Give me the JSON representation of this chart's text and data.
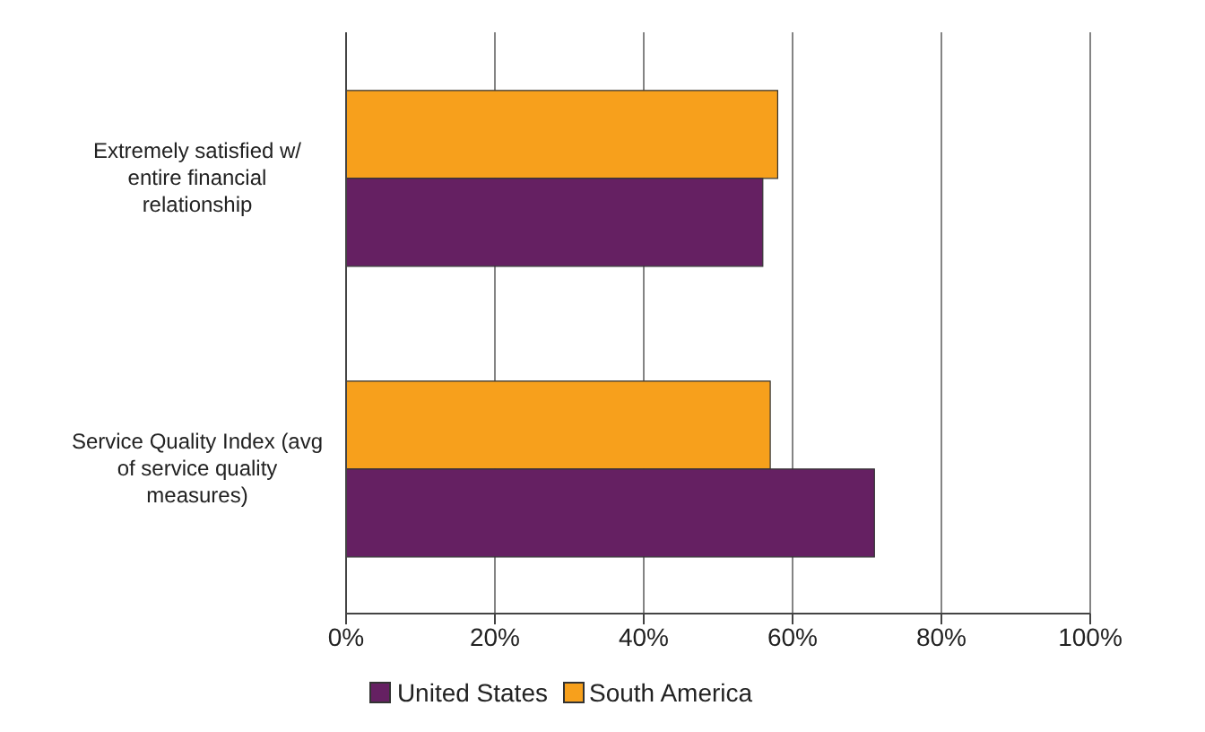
{
  "chart_data": {
    "type": "bar",
    "orientation": "horizontal",
    "categories": [
      "Extremely satisfied w/ entire financial relationship",
      "Service Quality Index (avg of service quality measures)"
    ],
    "series": [
      {
        "name": "United States",
        "color": "#652062",
        "values": [
          56,
          71
        ]
      },
      {
        "name": "South America",
        "color": "#f7a01c",
        "values": [
          58,
          57
        ]
      }
    ],
    "xlim": [
      0,
      100
    ],
    "xticks": [
      {
        "value": 0,
        "label": "0%"
      },
      {
        "value": 20,
        "label": "20%"
      },
      {
        "value": 40,
        "label": "40%"
      },
      {
        "value": 60,
        "label": "60%"
      },
      {
        "value": 80,
        "label": "80%"
      },
      {
        "value": 100,
        "label": "100%"
      }
    ],
    "grid": "x",
    "legend": "bottom"
  }
}
